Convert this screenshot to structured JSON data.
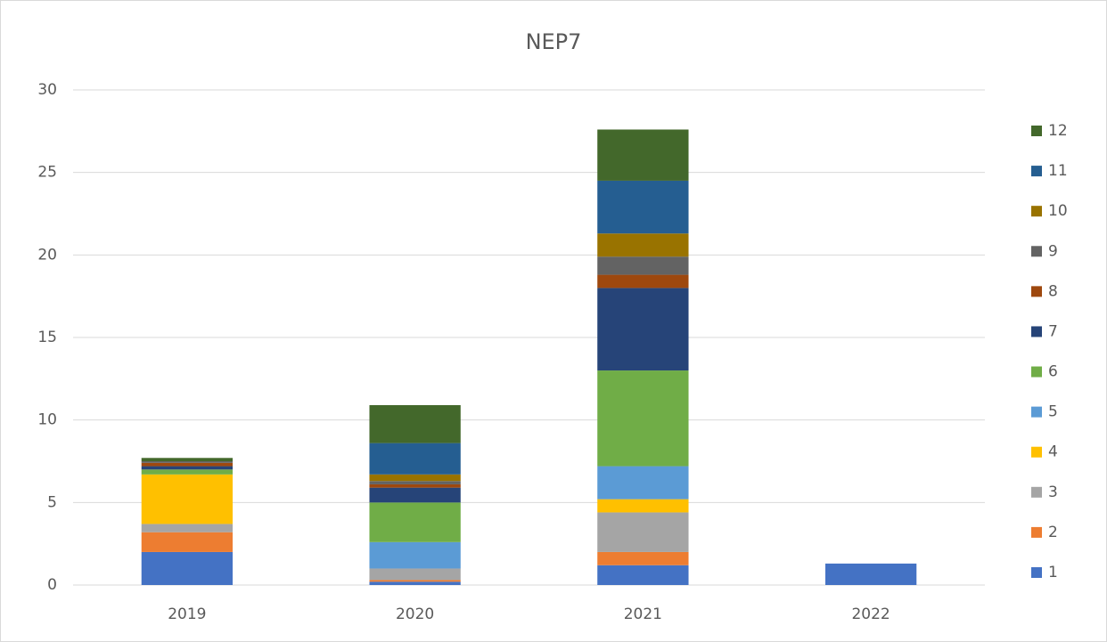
{
  "chart_data": {
    "type": "bar",
    "stacked": true,
    "title": "NEP7",
    "categories": [
      "2019",
      "2020",
      "2021",
      "2022"
    ],
    "series": [
      {
        "name": "1",
        "color": "#4472c4",
        "values": [
          2.0,
          0.2,
          1.2,
          1.3
        ]
      },
      {
        "name": "2",
        "color": "#ed7d31",
        "values": [
          1.2,
          0.1,
          0.8,
          0
        ]
      },
      {
        "name": "3",
        "color": "#a5a5a5",
        "values": [
          0.5,
          0.7,
          2.4,
          0
        ]
      },
      {
        "name": "4",
        "color": "#ffc000",
        "values": [
          3.0,
          0,
          0.8,
          0
        ]
      },
      {
        "name": "5",
        "color": "#5b9bd5",
        "values": [
          0,
          1.6,
          2.0,
          0
        ]
      },
      {
        "name": "6",
        "color": "#70ad47",
        "values": [
          0.3,
          2.4,
          5.8,
          0
        ]
      },
      {
        "name": "7",
        "color": "#264478",
        "values": [
          0.2,
          0.9,
          5.0,
          0
        ]
      },
      {
        "name": "8",
        "color": "#9e480e",
        "values": [
          0.2,
          0.2,
          0.8,
          0
        ]
      },
      {
        "name": "9",
        "color": "#636363",
        "values": [
          0.1,
          0.2,
          1.1,
          0
        ]
      },
      {
        "name": "10",
        "color": "#997300",
        "values": [
          0,
          0.4,
          1.4,
          0
        ]
      },
      {
        "name": "11",
        "color": "#255e91",
        "values": [
          0,
          1.9,
          3.2,
          0
        ]
      },
      {
        "name": "12",
        "color": "#43682b",
        "values": [
          0.2,
          2.3,
          3.1,
          0
        ]
      }
    ],
    "ylim": [
      0,
      30
    ],
    "yticks": [
      0,
      5,
      10,
      15,
      20,
      25,
      30
    ],
    "grid": true,
    "legend": "right"
  }
}
